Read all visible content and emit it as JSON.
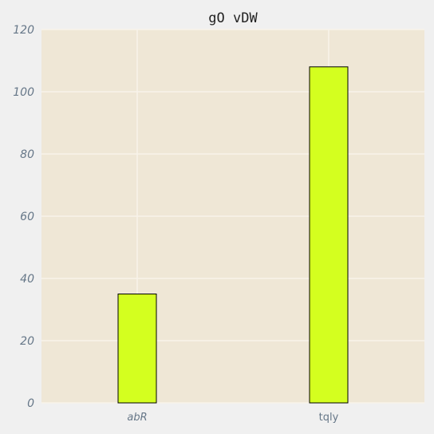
{
  "chart_data": {
    "type": "bar",
    "title": "gO vDW",
    "xlabel": "",
    "ylabel": "",
    "categories": [
      "abR",
      "tqly"
    ],
    "values": [
      35,
      108
    ],
    "ylim": [
      0,
      120
    ],
    "yticks": [
      0,
      20,
      40,
      60,
      80,
      100,
      120
    ],
    "grid": true,
    "colors": {
      "bar": "#d4ff1f",
      "bar_edge": "#000000",
      "plot_background": "#efe7d6",
      "grid": "#f8f3ea",
      "figure_background": "#f0f0f0",
      "tick_label": "#667788"
    }
  }
}
